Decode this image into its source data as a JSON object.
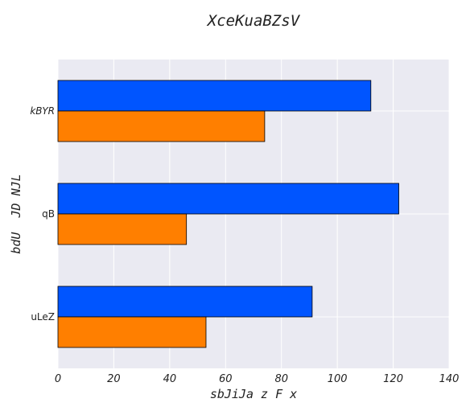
{
  "chart_data": {
    "type": "bar",
    "orientation": "horizontal",
    "title": "XceKuaBZsV",
    "xlabel": "sbJiJa z F x",
    "ylabel": "bdU  JD NJL",
    "categories": [
      "kBYR",
      "qB",
      "uLeZ"
    ],
    "series": [
      {
        "values": [
          112,
          122,
          91
        ],
        "color": "#0055ff"
      },
      {
        "values": [
          74,
          46,
          53
        ],
        "color": "#ff7f00"
      }
    ],
    "xlim": [
      0,
      140
    ],
    "xticks": [
      "0",
      "20",
      "40",
      "60",
      "80",
      "100",
      "120",
      "140"
    ],
    "grid": true,
    "plot_background": "#eaeaf2"
  }
}
